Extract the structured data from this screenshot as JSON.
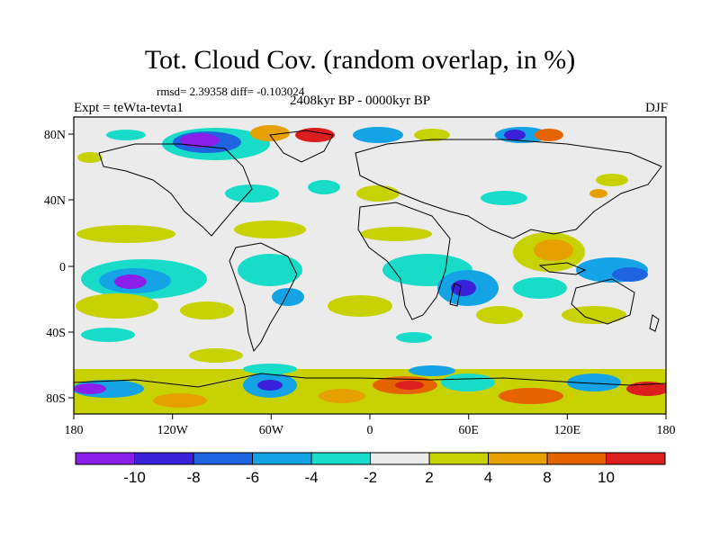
{
  "title": "Tot. Cloud Cov. (random overlap, in %)",
  "stats": "rmsd= 2.39358 diff= -0.103024",
  "experiment": "Expt = teWta-tevta1",
  "period": "2408kyr BP - 0000kyr BP",
  "season": "DJF",
  "lon_ticks": [
    "180",
    "120W",
    "60W",
    "0",
    "60E",
    "120E",
    "180"
  ],
  "lat_ticks": [
    "80N",
    "40N",
    "0",
    "40S",
    "80S"
  ],
  "colorbar": {
    "colors": [
      "#8b1ee8",
      "#3a20d8",
      "#1e64e0",
      "#14a4e6",
      "#19dcc8",
      "#ebebeb",
      "#c8d200",
      "#e6a000",
      "#e66400",
      "#dc1e1e"
    ],
    "labels": [
      "-10",
      "-8",
      "-6",
      "-4",
      "-2",
      "2",
      "4",
      "8",
      "10"
    ]
  }
}
